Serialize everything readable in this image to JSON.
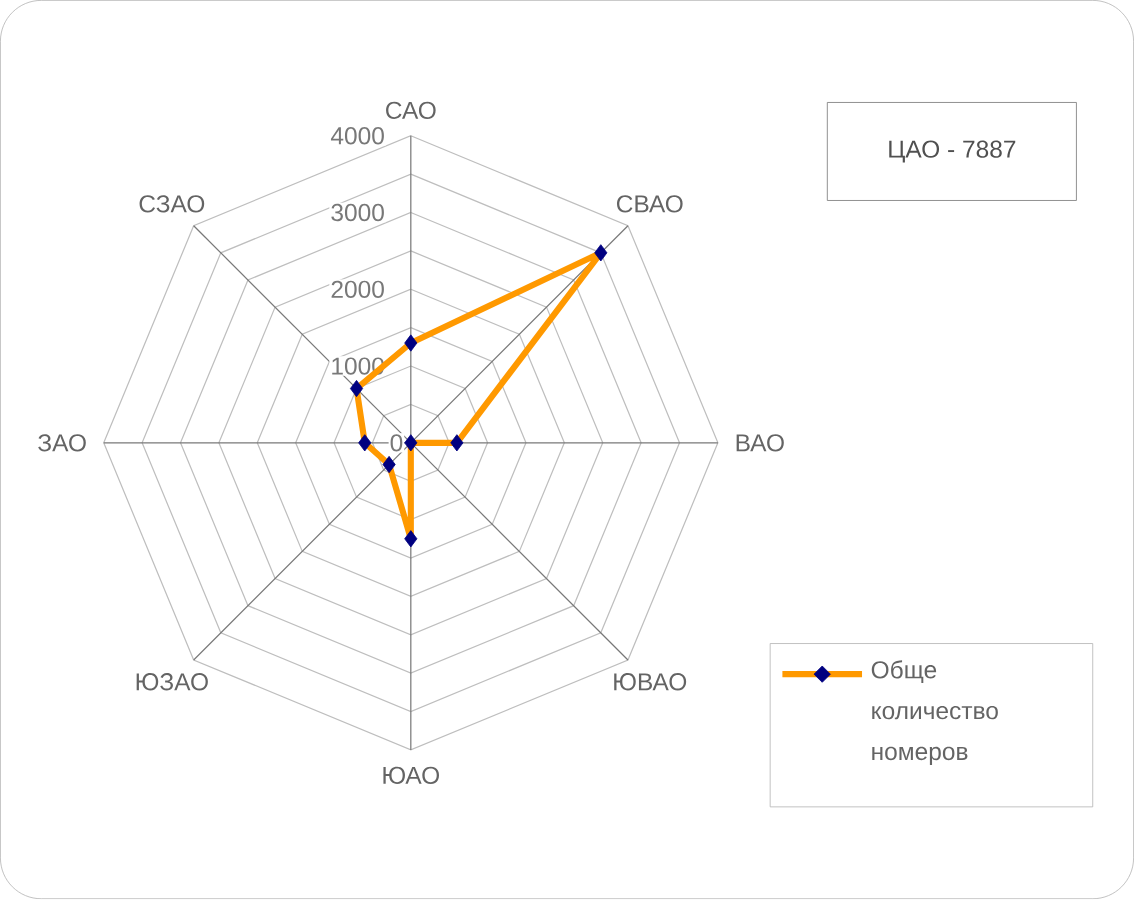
{
  "chart_data": {
    "type": "radar",
    "categories": [
      "САО",
      "СВАО",
      "ВАО",
      "ЮВАО",
      "ЮАО",
      "ЮЗАО",
      "ЗАО",
      "СЗАО"
    ],
    "series": [
      {
        "name": "Обще количество номеров",
        "color": "#ff9900",
        "values": [
          1300,
          3500,
          600,
          0,
          1250,
          400,
          600,
          1000
        ]
      }
    ],
    "ylim": [
      0,
      4000
    ],
    "yticks": [
      0,
      1000,
      2000,
      3000,
      4000
    ],
    "grid": true,
    "marker": "diamond",
    "line_style": "solid",
    "legend": "bottom right",
    "annotations": [
      "ЦАО - 7887"
    ]
  }
}
